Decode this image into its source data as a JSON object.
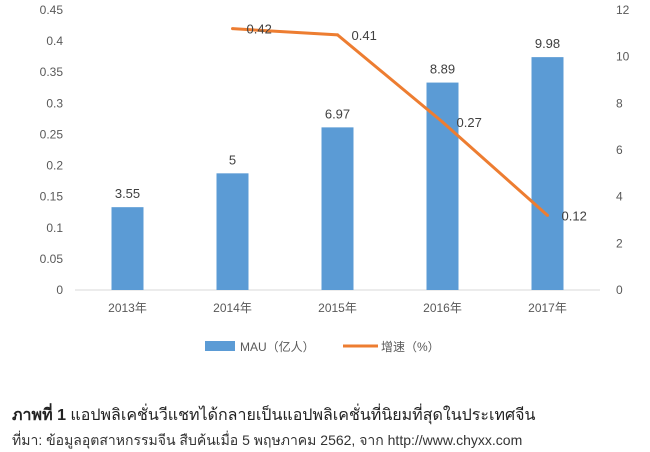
{
  "chart_data": {
    "type": "bar+line",
    "categories": [
      "2013年",
      "2014年",
      "2015年",
      "2016年",
      "2017年"
    ],
    "series": [
      {
        "name": "MAU（亿人）",
        "type": "bar",
        "axis": "right",
        "values": [
          3.55,
          5,
          6.97,
          8.89,
          9.98
        ],
        "color": "#5B9BD5",
        "labels": [
          "3.55",
          "5",
          "6.97",
          "8.89",
          "9.98"
        ]
      },
      {
        "name": "增速（%）",
        "type": "line",
        "axis": "left",
        "values": [
          null,
          0.42,
          0.41,
          0.27,
          0.12
        ],
        "color": "#ED7D31",
        "labels": [
          "",
          "0.42",
          "0.41",
          "0.27",
          "0.12"
        ]
      }
    ],
    "left_axis": {
      "ylim": [
        0,
        0.45
      ],
      "ticks": [
        "0",
        "0.05",
        "0.1",
        "0.15",
        "0.2",
        "0.25",
        "0.3",
        "0.35",
        "0.4",
        "0.45"
      ]
    },
    "right_axis": {
      "ylim": [
        0,
        12
      ],
      "ticks": [
        "0",
        "2",
        "4",
        "6",
        "8",
        "10",
        "12"
      ]
    },
    "grid": false,
    "legend": "bottom"
  },
  "caption": {
    "label": "ภาพที่ 1",
    "title": "แอปพลิเคชั่นวีแชทได้กลายเป็นแอปพลิเคชั่นที่นิยมที่สุดในประเทศจีน",
    "source": "ที่มา: ข้อมูลอุตสาหกรรมจีน สืบค้นเมื่อ 5 พฤษภาคม 2562, จาก http://www.chyxx.com"
  }
}
